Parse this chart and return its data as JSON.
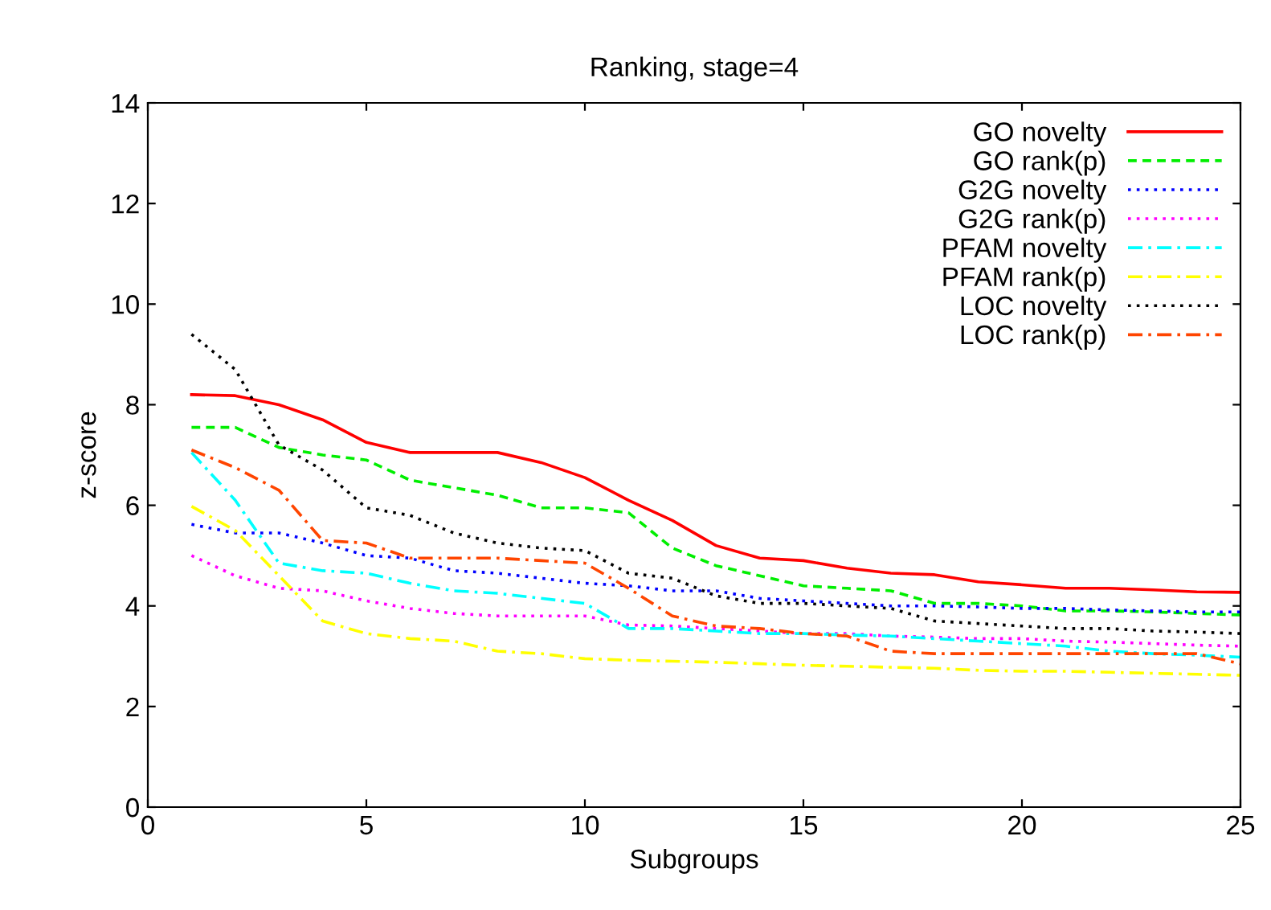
{
  "chart_data": {
    "type": "line",
    "title": "Ranking, stage=4",
    "xlabel": "Subgroups",
    "ylabel": "z-score",
    "x": [
      1,
      2,
      3,
      4,
      5,
      6,
      7,
      8,
      9,
      10,
      11,
      12,
      13,
      14,
      15,
      16,
      17,
      18,
      19,
      20,
      21,
      22,
      23,
      24,
      25
    ],
    "xlim": [
      0,
      25
    ],
    "xticks": [
      0,
      5,
      10,
      15,
      20,
      25
    ],
    "ylim": [
      0,
      14
    ],
    "yticks": [
      0,
      2,
      4,
      6,
      8,
      10,
      12,
      14
    ],
    "grid": false,
    "legend": "top right",
    "marker": "none",
    "series": [
      {
        "name": "GO novelty",
        "color": "#ff0000",
        "line_style": "solid",
        "values": [
          8.2,
          8.18,
          8.0,
          7.7,
          7.25,
          7.05,
          7.05,
          7.05,
          6.85,
          6.55,
          6.1,
          5.7,
          5.2,
          4.95,
          4.9,
          4.75,
          4.65,
          4.62,
          4.48,
          4.42,
          4.35,
          4.35,
          4.32,
          4.28,
          4.27
        ]
      },
      {
        "name": "GO rank(p)",
        "color": "#00ee00",
        "line_style": "dashed",
        "values": [
          7.55,
          7.55,
          7.15,
          7.0,
          6.9,
          6.5,
          6.35,
          6.2,
          5.95,
          5.95,
          5.85,
          5.15,
          4.8,
          4.6,
          4.4,
          4.35,
          4.3,
          4.05,
          4.05,
          4.0,
          3.9,
          3.9,
          3.88,
          3.85,
          3.82
        ]
      },
      {
        "name": "G2G novelty",
        "color": "#0000ff",
        "line_style": "dotted",
        "values": [
          5.62,
          5.45,
          5.45,
          5.25,
          5.0,
          4.95,
          4.7,
          4.65,
          4.55,
          4.45,
          4.4,
          4.3,
          4.3,
          4.15,
          4.1,
          4.05,
          4.0,
          4.0,
          3.98,
          3.95,
          3.95,
          3.92,
          3.9,
          3.88,
          3.88
        ]
      },
      {
        "name": "G2G rank(p)",
        "color": "#ff00ff",
        "line_style": "dotted",
        "values": [
          5.0,
          4.6,
          4.35,
          4.3,
          4.1,
          3.95,
          3.85,
          3.8,
          3.8,
          3.8,
          3.62,
          3.6,
          3.55,
          3.5,
          3.45,
          3.45,
          3.4,
          3.38,
          3.35,
          3.35,
          3.3,
          3.28,
          3.25,
          3.22,
          3.2
        ]
      },
      {
        "name": "PFAM novelty",
        "color": "#00ffff",
        "line_style": "dashdot",
        "values": [
          7.05,
          6.1,
          4.85,
          4.7,
          4.65,
          4.45,
          4.3,
          4.25,
          4.15,
          4.05,
          3.55,
          3.55,
          3.5,
          3.45,
          3.45,
          3.42,
          3.4,
          3.35,
          3.3,
          3.25,
          3.2,
          3.1,
          3.05,
          3.02,
          2.98
        ]
      },
      {
        "name": "PFAM rank(p)",
        "color": "#ffff00",
        "line_style": "dashdot",
        "values": [
          5.98,
          5.5,
          4.6,
          3.7,
          3.45,
          3.35,
          3.3,
          3.1,
          3.05,
          2.95,
          2.92,
          2.9,
          2.88,
          2.85,
          2.82,
          2.8,
          2.78,
          2.76,
          2.72,
          2.7,
          2.7,
          2.68,
          2.66,
          2.64,
          2.62
        ]
      },
      {
        "name": "LOC novelty",
        "color": "#000000",
        "line_style": "dotted",
        "values": [
          9.4,
          8.7,
          7.2,
          6.7,
          5.95,
          5.8,
          5.45,
          5.25,
          5.15,
          5.1,
          4.65,
          4.55,
          4.2,
          4.05,
          4.05,
          4.0,
          3.95,
          3.7,
          3.65,
          3.6,
          3.55,
          3.55,
          3.5,
          3.48,
          3.45
        ]
      },
      {
        "name": "LOC rank(p)",
        "color": "#ff4500",
        "line_style": "dashdot",
        "values": [
          7.1,
          6.75,
          6.3,
          5.3,
          5.25,
          4.95,
          4.95,
          4.95,
          4.9,
          4.85,
          4.35,
          3.8,
          3.6,
          3.55,
          3.45,
          3.4,
          3.1,
          3.05,
          3.05,
          3.05,
          3.05,
          3.05,
          3.05,
          3.05,
          2.85
        ]
      }
    ]
  }
}
